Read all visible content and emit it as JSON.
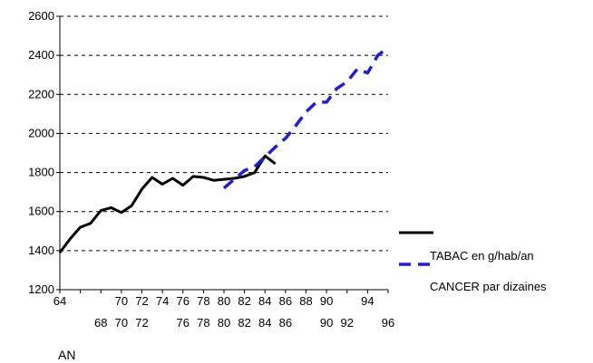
{
  "chart_data": {
    "type": "line",
    "title": "",
    "xlabel": "AN",
    "ylabel": "",
    "xlim": [
      64,
      96
    ],
    "ylim": [
      1200,
      2600
    ],
    "yticks": [
      1200,
      1400,
      1600,
      1800,
      2000,
      2200,
      2400,
      2600
    ],
    "xticks_upper": [
      64,
      70,
      72,
      74,
      76,
      78,
      80,
      82,
      84,
      86,
      88,
      90,
      94
    ],
    "xticks_lower": [
      68,
      70,
      72,
      76,
      78,
      80,
      82,
      84,
      86,
      90,
      92,
      96
    ],
    "grid": true,
    "legend_position": "right",
    "series": [
      {
        "name": "TABAC en g/hab/an",
        "color": "#000000",
        "style": "solid",
        "x": [
          64,
          65,
          66,
          67,
          68,
          69,
          70,
          71,
          72,
          73,
          74,
          75,
          76,
          77,
          78,
          79,
          80,
          81,
          82,
          83,
          84,
          85,
          86
        ],
        "y": [
          1390,
          1460,
          1520,
          1540,
          1605,
          1620,
          1595,
          1630,
          1715,
          1775,
          1740,
          1770,
          1735,
          1780,
          1775,
          1760,
          1765,
          1770,
          1780,
          1800,
          1885,
          1845,
          null
        ]
      },
      {
        "name": "CANCER par dizaines",
        "color": "#1f1fd6",
        "style": "dashed",
        "x": [
          80,
          81,
          82,
          83,
          84,
          85,
          86,
          87,
          88,
          89,
          90,
          91,
          92,
          93,
          94,
          95,
          96
        ],
        "y": [
          1720,
          1765,
          1810,
          1830,
          1880,
          1930,
          1975,
          2040,
          2110,
          2160,
          2160,
          2230,
          2265,
          2330,
          2310,
          2400,
          2440
        ]
      }
    ]
  }
}
